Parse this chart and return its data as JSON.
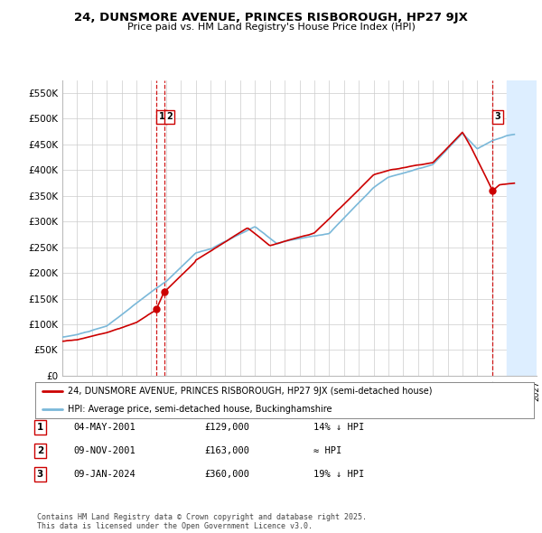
{
  "title_line1": "24, DUNSMORE AVENUE, PRINCES RISBOROUGH, HP27 9JX",
  "title_line2": "Price paid vs. HM Land Registry's House Price Index (HPI)",
  "ylim": [
    0,
    575000
  ],
  "yticks": [
    0,
    50000,
    100000,
    150000,
    200000,
    250000,
    300000,
    350000,
    400000,
    450000,
    500000,
    550000
  ],
  "ytick_labels": [
    "£0",
    "£50K",
    "£100K",
    "£150K",
    "£200K",
    "£250K",
    "£300K",
    "£350K",
    "£400K",
    "£450K",
    "£500K",
    "£550K"
  ],
  "background_color": "#ffffff",
  "plot_bg_color": "#ffffff",
  "grid_color": "#cccccc",
  "hpi_color": "#7ab8d9",
  "price_color": "#cc0000",
  "dashed_line_color": "#cc0000",
  "future_fill_color": "#ddeeff",
  "legend_label_red": "24, DUNSMORE AVENUE, PRINCES RISBOROUGH, HP27 9JX (semi-detached house)",
  "legend_label_blue": "HPI: Average price, semi-detached house, Buckinghamshire",
  "sale1_date": 2001.34,
  "sale1_price": 129000,
  "sale1_label": "1",
  "sale2_date": 2001.86,
  "sale2_price": 163000,
  "sale2_label": "2",
  "sale3_date": 2024.03,
  "sale3_price": 360000,
  "sale3_label": "3",
  "table_rows": [
    [
      "1",
      "04-MAY-2001",
      "£129,000",
      "14% ↓ HPI"
    ],
    [
      "2",
      "09-NOV-2001",
      "£163,000",
      "≈ HPI"
    ],
    [
      "3",
      "09-JAN-2024",
      "£360,000",
      "19% ↓ HPI"
    ]
  ],
  "footer_text": "Contains HM Land Registry data © Crown copyright and database right 2025.\nThis data is licensed under the Open Government Licence v3.0.",
  "xmin": 1995.0,
  "xmax": 2027.0,
  "future_start": 2025.0
}
